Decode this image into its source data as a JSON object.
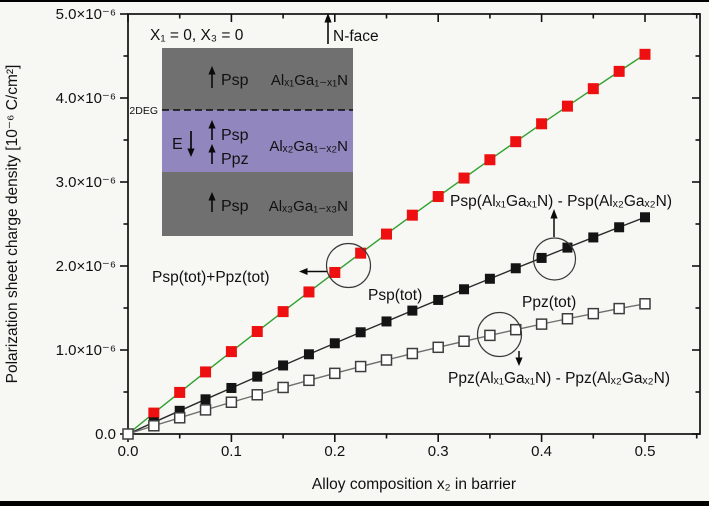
{
  "chart_data": {
    "type": "line",
    "title": "",
    "xlabel": "Alloy composition x₂ in barrier",
    "ylabel": "Polarization sheet charge density [10⁻⁶ C/cm²]",
    "units": "10⁻⁶ C/cm²",
    "xlim": [
      0,
      0.55
    ],
    "ylim": [
      0,
      5.0
    ],
    "grid": false,
    "legend": "none (in-plot text annotations)",
    "x_ticks": {
      "values": [
        0,
        0.1,
        0.2,
        0.3,
        0.4,
        0.5
      ],
      "labels": [
        "0.0",
        "0.1",
        "0.2",
        "0.3",
        "0.4",
        "0.5"
      ],
      "minor": [
        0.05,
        0.15,
        0.25,
        0.35,
        0.45,
        0.55
      ]
    },
    "y_ticks": {
      "values": [
        0,
        1,
        2,
        3,
        4,
        5
      ],
      "labels": [
        "0.0",
        "1.0×10⁻⁶",
        "2.0×10⁻⁶",
        "3.0×10⁻⁶",
        "4.0×10⁻⁶",
        "5.0×10⁻⁶"
      ],
      "minor": [
        0.5,
        1.5,
        2.5,
        3.5,
        4.5
      ]
    },
    "x": [
      0,
      0.025,
      0.05,
      0.075,
      0.1,
      0.125,
      0.15,
      0.175,
      0.2,
      0.225,
      0.25,
      0.275,
      0.3,
      0.325,
      0.35,
      0.375,
      0.4,
      0.425,
      0.45,
      0.475,
      0.5
    ],
    "series": [
      {
        "id": "total",
        "name": "Psp(tot)+Ppz(tot)",
        "marker": "filled-square",
        "marker_color": "#ee1010",
        "line_color": "#2fa12f",
        "marker_size": 11,
        "values": [
          0,
          0.249,
          0.495,
          0.739,
          0.981,
          1.22,
          1.457,
          1.691,
          1.923,
          2.153,
          2.38,
          2.605,
          2.827,
          3.047,
          3.265,
          3.48,
          3.693,
          3.903,
          4.111,
          4.317,
          4.52
        ]
      },
      {
        "id": "psp",
        "name": "Psp(tot)",
        "marker": "filled-square",
        "marker_color": "#141414",
        "line_color": "#2a2a2a",
        "marker_size": 10,
        "values": [
          0,
          0.139,
          0.276,
          0.413,
          0.548,
          0.683,
          0.816,
          0.949,
          1.08,
          1.211,
          1.34,
          1.469,
          1.596,
          1.723,
          1.848,
          1.973,
          2.096,
          2.219,
          2.34,
          2.461,
          2.58
        ]
      },
      {
        "id": "ppz",
        "name": "Ppz(tot)",
        "marker": "open-square",
        "marker_color": "#ffffff",
        "line_color": "#6e6e6e",
        "marker_size": 10,
        "values": [
          0,
          0.098,
          0.193,
          0.287,
          0.378,
          0.467,
          0.554,
          0.639,
          0.722,
          0.803,
          0.881,
          0.958,
          1.032,
          1.104,
          1.174,
          1.242,
          1.308,
          1.372,
          1.433,
          1.493,
          1.55
        ]
      }
    ]
  },
  "annotations": {
    "condition": "X₁ = 0, X₃ = 0",
    "nface": "N-face",
    "total_label": "Psp(tot)+Ppz(tot)",
    "psp_tot": "Psp(tot)",
    "ppz_tot": "Ppz(tot)",
    "psp_diff": "Psp(Alₓ₁Gaₓ₁N) - Psp(Alₓ₂Gaₓ₂N)",
    "ppz_diff": "Ppz(Alₓ₁Gaₓ₁N) - Ppz(Alₓ₂Gaₓ₂N)"
  },
  "inset": {
    "two_deg": "2DEG",
    "layers": [
      {
        "formula": "Alₓ₁Ga₁₋ₓ₁N",
        "color": "#707070",
        "polarizations": [
          "Psp"
        ]
      },
      {
        "formula": "Alₓ₂Ga₁₋ₓ₂N",
        "color": "#9186be",
        "polarizations": [
          "Psp",
          "Ppz"
        ],
        "efield": "E"
      },
      {
        "formula": "Alₓ₃Ga₁₋ₓ₃N",
        "color": "#707070",
        "polarizations": [
          "Psp"
        ]
      }
    ]
  },
  "colors": {
    "axis": "#111111",
    "background": "#f7f7f4",
    "total_marker": "#ee1010",
    "total_line": "#2fa12f",
    "layer_gray": "#707070",
    "layer_purple": "#9186be"
  }
}
